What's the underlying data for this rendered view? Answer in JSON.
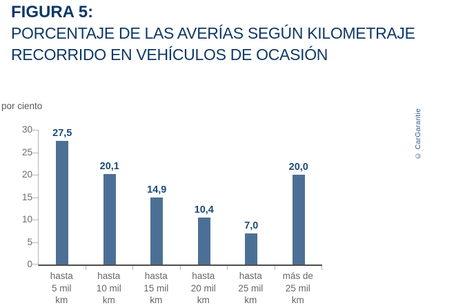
{
  "header": {
    "title": "FIGURA 5:",
    "subtitle_line1": "PORCENTAJE DE LAS AVERÍAS SEGÚN KILOMETRAJE",
    "subtitle_line2": "RECORRIDO EN VEHÍCULOS DE OCASIÓN"
  },
  "chart_data": {
    "type": "bar",
    "title": "Porcentaje de las averías según kilometraje recorrido en vehículos de ocasión",
    "unit_label": "por ciento",
    "categories": [
      "hasta 5 mil km",
      "hasta 10 mil km",
      "hasta 15 mil km",
      "hasta 20 mil km",
      "hasta 25 mil km",
      "más de 25 mil km"
    ],
    "category_lines": [
      [
        "hasta",
        "5 mil",
        "km"
      ],
      [
        "hasta",
        "10 mil",
        "km"
      ],
      [
        "hasta",
        "15 mil",
        "km"
      ],
      [
        "hasta",
        "20 mil",
        "km"
      ],
      [
        "hasta",
        "25 mil",
        "km"
      ],
      [
        "más de",
        "25 mil",
        "km"
      ]
    ],
    "values": [
      27.5,
      20.1,
      14.9,
      10.4,
      7.0,
      20.0
    ],
    "value_labels": [
      "27,5",
      "20,1",
      "14,9",
      "10,4",
      "7,0",
      "20,0"
    ],
    "xlabel": "",
    "ylabel": "por ciento",
    "ylim": [
      0,
      30
    ],
    "yticks": [
      0,
      5,
      10,
      15,
      20,
      25,
      30
    ],
    "grid": false,
    "legend": "none"
  },
  "colors": {
    "title_navy": "#0e3866",
    "value_label_navy": "#1c4b78",
    "bar_fill": "#4c7095",
    "axis_light_gray": "#b3b3b3",
    "baseline_dark_gray": "#4d4d4d",
    "label_gray": "#666666",
    "copyright_blue": "#2e5a87"
  },
  "footer": {
    "copyright": "© CarGarantie"
  }
}
